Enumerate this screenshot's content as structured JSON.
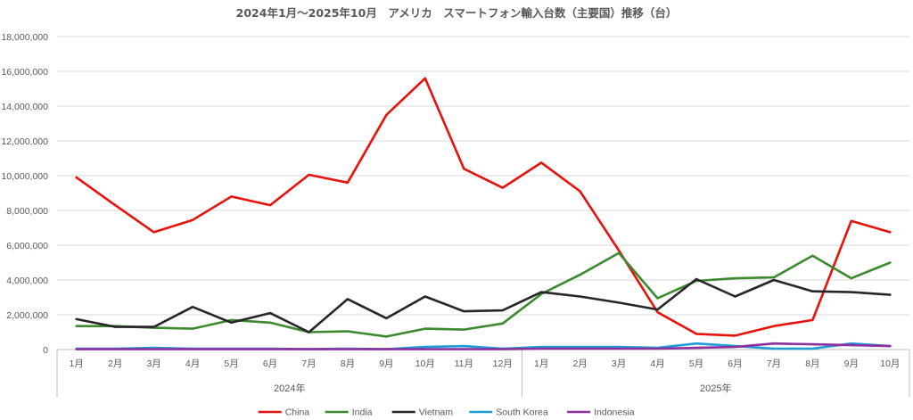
{
  "chart_data": {
    "type": "line",
    "title": "2024年1月～2025年10月　アメリカ　スマートフォン輸入台数（主要国）推移（台）",
    "categories": [
      "1月",
      "2月",
      "3月",
      "4月",
      "5月",
      "6月",
      "7月",
      "8月",
      "9月",
      "10月",
      "11月",
      "12月",
      "1月",
      "2月",
      "3月",
      "4月",
      "5月",
      "6月",
      "7月",
      "8月",
      "9月",
      "10月"
    ],
    "category_groups": [
      {
        "label": "2024年",
        "count": 12
      },
      {
        "label": "2025年",
        "count": 10
      }
    ],
    "ylim": [
      0,
      18000000
    ],
    "yticks": [
      0,
      2000000,
      4000000,
      6000000,
      8000000,
      10000000,
      12000000,
      14000000,
      16000000,
      18000000
    ],
    "ytick_labels": [
      "0",
      "2,000,000",
      "4,000,000",
      "6,000,000",
      "8,000,000",
      "10,000,000",
      "12,000,000",
      "14,000,000",
      "16,000,000",
      "18,000,000"
    ],
    "grid": true,
    "legend_position": "bottom",
    "series": [
      {
        "name": "China",
        "color": "#e8120c",
        "values": [
          9900000,
          8300000,
          6750000,
          7450000,
          8800000,
          8300000,
          10050000,
          9600000,
          13500000,
          15600000,
          10400000,
          9300000,
          10750000,
          9100000,
          5700000,
          2150000,
          900000,
          800000,
          1350000,
          1700000,
          7400000,
          6750000
        ]
      },
      {
        "name": "India",
        "color": "#3b8a2e",
        "values": [
          1350000,
          1350000,
          1250000,
          1200000,
          1700000,
          1550000,
          1000000,
          1050000,
          750000,
          1200000,
          1150000,
          1500000,
          3200000,
          4300000,
          5550000,
          2950000,
          3950000,
          4100000,
          4150000,
          5400000,
          4100000,
          5000000
        ]
      },
      {
        "name": "Vietnam",
        "color": "#262626",
        "values": [
          1750000,
          1300000,
          1300000,
          2450000,
          1550000,
          2100000,
          1000000,
          2900000,
          1800000,
          3050000,
          2200000,
          2250000,
          3300000,
          3050000,
          2700000,
          2300000,
          4050000,
          3050000,
          4000000,
          3350000,
          3300000,
          3150000
        ]
      },
      {
        "name": "South Korea",
        "color": "#1f9bd7",
        "values": [
          50000,
          50000,
          100000,
          50000,
          50000,
          50000,
          20000,
          50000,
          20000,
          150000,
          200000,
          50000,
          150000,
          150000,
          150000,
          100000,
          350000,
          200000,
          50000,
          50000,
          350000,
          200000
        ]
      },
      {
        "name": "Indonesia",
        "color": "#8e2f9e",
        "values": [
          20000,
          20000,
          20000,
          20000,
          20000,
          20000,
          20000,
          20000,
          20000,
          20000,
          20000,
          20000,
          50000,
          50000,
          50000,
          50000,
          100000,
          150000,
          350000,
          300000,
          250000,
          200000
        ]
      }
    ]
  }
}
